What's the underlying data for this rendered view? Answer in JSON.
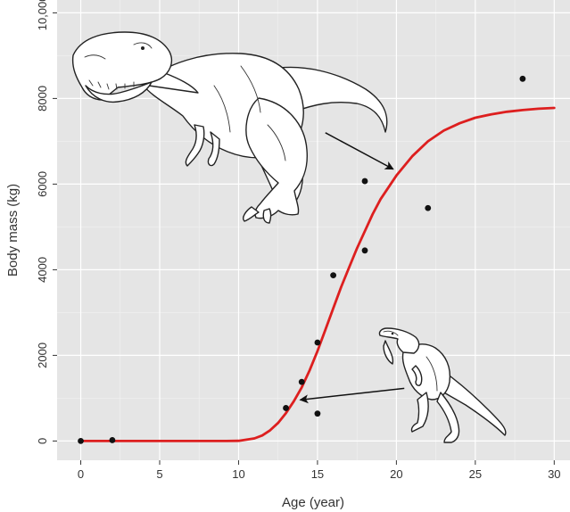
{
  "chart_data": {
    "type": "scatter",
    "title": "",
    "xlabel": "Age (year)",
    "ylabel": "Body mass (kg)",
    "xlim": [
      -1.5,
      31
    ],
    "ylim": [
      -450,
      10300
    ],
    "x_ticks": [
      0,
      5,
      10,
      15,
      20,
      25,
      30
    ],
    "y_ticks": [
      0,
      2000,
      4000,
      6000,
      8000,
      10000
    ],
    "y_tick_labels": [
      "0",
      "2000",
      "4000",
      "6000",
      "8000",
      "10,000"
    ],
    "grid": true,
    "background": "#e5e5e5",
    "points": [
      {
        "x": 0,
        "y": 0
      },
      {
        "x": 2,
        "y": 20
      },
      {
        "x": 13,
        "y": 770
      },
      {
        "x": 14,
        "y": 1380
      },
      {
        "x": 15,
        "y": 640
      },
      {
        "x": 15,
        "y": 2300
      },
      {
        "x": 16,
        "y": 3870
      },
      {
        "x": 18,
        "y": 4450
      },
      {
        "x": 18,
        "y": 6070
      },
      {
        "x": 22,
        "y": 5440
      },
      {
        "x": 28,
        "y": 8460
      }
    ],
    "point_color": "#111111",
    "curve": {
      "color": "#dd1f1f",
      "x": [
        0,
        9,
        10,
        11,
        11.5,
        12,
        12.5,
        13,
        13.5,
        14,
        14.5,
        15,
        15.5,
        16,
        16.5,
        17,
        17.5,
        18,
        18.5,
        19,
        20,
        21,
        22,
        23,
        24,
        25,
        26,
        27,
        28,
        29,
        30
      ],
      "y": [
        0,
        0,
        5,
        60,
        130,
        250,
        420,
        650,
        930,
        1250,
        1650,
        2100,
        2600,
        3100,
        3600,
        4050,
        4500,
        4900,
        5300,
        5650,
        6200,
        6650,
        7000,
        7250,
        7420,
        7550,
        7630,
        7690,
        7730,
        7760,
        7780
      ]
    },
    "arrows": [
      {
        "from": [
          15.5,
          7200
        ],
        "to": [
          19.8,
          6350
        ]
      },
      {
        "from": [
          20.5,
          1230
        ],
        "to": [
          13.9,
          960
        ]
      }
    ],
    "illustrations": [
      "adult-trex-illustration",
      "juvenile-trex-illustration"
    ]
  }
}
